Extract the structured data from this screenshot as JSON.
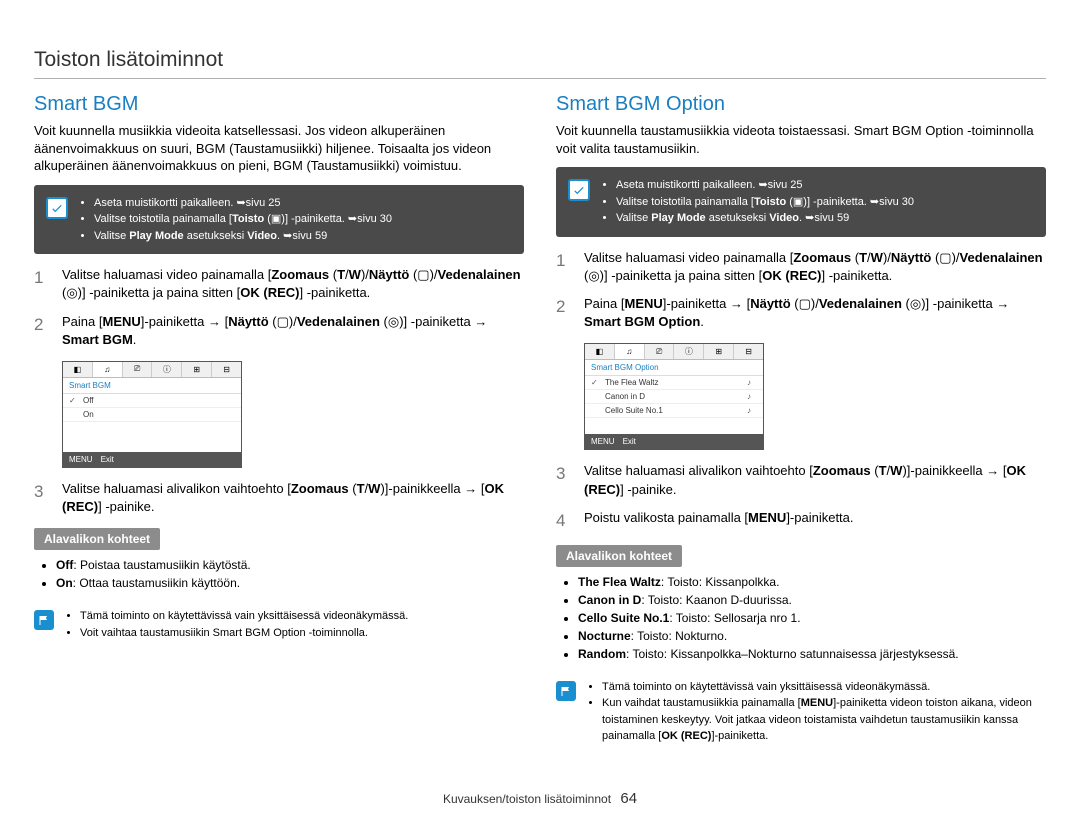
{
  "page_title": "Toiston lisätoiminnot",
  "footer": {
    "label": "Kuvauksen/toiston lisätoiminnot",
    "page": "64"
  },
  "colors": {
    "heading": "#1a7fc0",
    "darkbox_bg": "#4a4a4a",
    "subhead_bg": "#8c8c8c",
    "note_bg": "#1a8fd0"
  },
  "left": {
    "heading": "Smart BGM",
    "intro": "Voit kuunnella musiikkia videoita katsellessasi. Jos videon alkuperäinen äänenvoimakkuus on suuri, BGM (Taustamusiikki) hiljenee. Toisaalta jos videon alkuperäinen äänenvoimakkuus on pieni, BGM (Taustamusiikki) voimistuu.",
    "darkbox": [
      "Aseta muistikortti paikalleen. ➥sivu 25",
      "Valitse toistotila painamalla [<b>Toisto</b> (▣)] -painiketta. ➥sivu 30",
      "Valitse <b>Play Mode</b> asetukseksi <b>Video</b>. ➥sivu 59"
    ],
    "steps": [
      "Valitse haluamasi video painamalla [<b>Zoomaus</b> (<b>T</b>/<b>W</b>)/<b>Näyttö</b> (▢)/<b>Vedenalainen</b> (◎)] -painiketta ja paina sitten [<b>OK (REC)</b>] -painiketta.",
      "Paina [<b>MENU</b>]-painiketta → [<b>Näyttö</b> (▢)/<b>Vedenalainen</b> (◎)] -painiketta → <b>Smart BGM</b>.",
      "Valitse haluamasi alivalikon vaihtoehto [<b>Zoomaus</b> (<b>T</b>/<b>W</b>)]-painikkeella → [<b>OK (REC)</b>] -painike."
    ],
    "mock": {
      "header": "Smart BGM",
      "rows": [
        {
          "check": true,
          "label": "Off"
        },
        {
          "check": false,
          "label": "On"
        }
      ],
      "footer": {
        "menu": "MENU",
        "exit": "Exit"
      }
    },
    "subhead": "Alavalikon kohteet",
    "subitems": [
      "<b>Off</b>: Poistaa taustamusiikin käytöstä.",
      "<b>On</b>: Ottaa taustamusiikin käyttöön."
    ],
    "notes": [
      "Tämä toiminto on käytettävissä vain yksittäisessä videonäkymässä.",
      "Voit vaihtaa taustamusiikin Smart BGM Option -toiminnolla."
    ]
  },
  "right": {
    "heading": "Smart BGM Option",
    "intro": "Voit kuunnella taustamusiikkia videota toistaessasi. Smart BGM Option -toiminnolla voit valita taustamusiikin.",
    "darkbox": [
      "Aseta muistikortti paikalleen. ➥sivu 25",
      "Valitse toistotila painamalla [<b>Toisto</b> (▣)] -painiketta. ➥sivu 30",
      "Valitse <b>Play Mode</b> asetukseksi <b>Video</b>. ➥sivu 59"
    ],
    "steps": [
      "Valitse haluamasi video painamalla [<b>Zoomaus</b> (<b>T</b>/<b>W</b>)/<b>Näyttö</b> (▢)/<b>Vedenalainen</b> (◎)] -painiketta ja paina sitten [<b>OK (REC)</b>] -painiketta.",
      "Paina [<b>MENU</b>]-painiketta → [<b>Näyttö</b> (▢)/<b>Vedenalainen</b> (◎)] -painiketta → <b>Smart BGM Option</b>.",
      "Valitse haluamasi alivalikon vaihtoehto [<b>Zoomaus</b> (<b>T</b>/<b>W</b>)]-painikkeella → [<b>OK (REC)</b>] -painike.",
      "Poistu valikosta painamalla [<b>MENU</b>]-painiketta."
    ],
    "mock": {
      "header": "Smart BGM Option",
      "rows": [
        {
          "check": true,
          "label": "The Flea Waltz",
          "ico": "♪"
        },
        {
          "check": false,
          "label": "Canon in D",
          "ico": "♪"
        },
        {
          "check": false,
          "label": "Cello Suite No.1",
          "ico": "♪"
        }
      ],
      "footer": {
        "menu": "MENU",
        "exit": "Exit"
      }
    },
    "subhead": "Alavalikon kohteet",
    "subitems": [
      "<b>The Flea Waltz</b>: Toisto: Kissanpolkka.",
      "<b>Canon in D</b>: Toisto: Kaanon D-duurissa.",
      "<b>Cello Suite No.1</b>: Toisto: Sellosarja nro 1.",
      "<b>Nocturne</b>: Toisto: Nokturno.",
      "<b>Random</b>: Toisto: Kissanpolkka–Nokturno satunnaisessa järjestyksessä."
    ],
    "notes": [
      "Tämä toiminto on käytettävissä vain yksittäisessä videonäkymässä.",
      "Kun vaihdat taustamusiikkia painamalla [<b>MENU</b>]-painiketta videon toiston aikana, videon toistaminen keskeytyy. Voit jatkaa videon toistamista vaihdetun taustamusiikin kanssa painamalla [<b>OK (REC)</b>]-painiketta."
    ]
  }
}
